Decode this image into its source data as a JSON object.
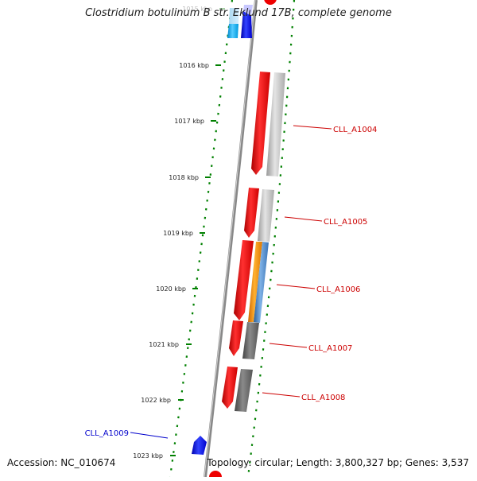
{
  "title": "Clostridium botulinum B str. Eklund 17B, complete genome",
  "accession": "Accession: NC_010674",
  "topology": "Topology: circular; Length: 3,800,327 bp; Genes: 3,537",
  "ticks": [
    {
      "label": "1015 kbp",
      "faded": true
    },
    {
      "label": "1016 kbp"
    },
    {
      "label": "1017 kbp"
    },
    {
      "label": "1018 kbp"
    },
    {
      "label": "1019 kbp"
    },
    {
      "label": "1020 kbp"
    },
    {
      "label": "1021 kbp"
    },
    {
      "label": "1022 kbp"
    },
    {
      "label": "1023 kbp"
    }
  ],
  "gene_labels": [
    {
      "name": "CLL_A1004",
      "color": "#cc0000"
    },
    {
      "name": "CLL_A1005",
      "color": "#cc0000"
    },
    {
      "name": "CLL_A1006",
      "color": "#cc0000"
    },
    {
      "name": "CLL_A1007",
      "color": "#cc0000"
    },
    {
      "name": "CLL_A1008",
      "color": "#cc0000"
    },
    {
      "name": "CLL_A1009",
      "color": "#0000cc"
    }
  ],
  "colors": {
    "cds_red": "#ff0000",
    "cds_blue": "#0000ee",
    "cds_cyan": "#00aaee",
    "orange": "#ff9900",
    "steelblue": "#4a8fd4",
    "lightgray": "#bbbbbb",
    "darkgray": "#666666",
    "backbone": "#888888",
    "tick_green": "#008000"
  }
}
